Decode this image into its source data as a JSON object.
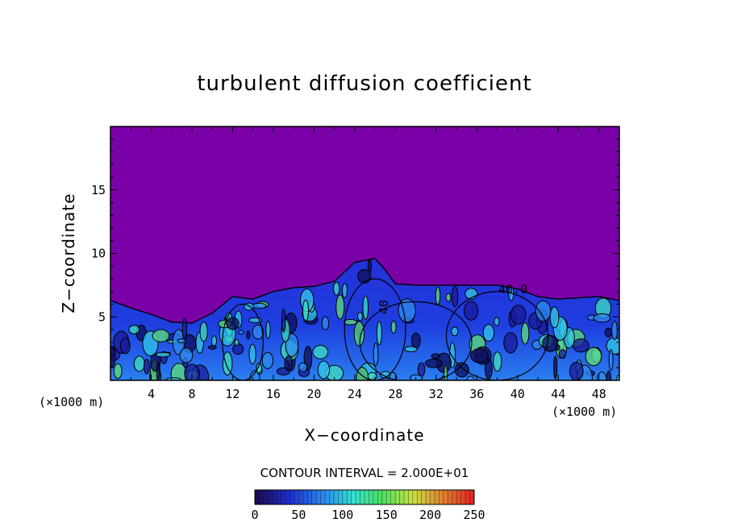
{
  "chart_data": {
    "type": "heatmap",
    "title": "turbulent diffusion coefficient",
    "xlabel": "X−coordinate",
    "ylabel": "Z−coordinate",
    "x_unit_left": "(×1000 m)",
    "x_unit_right": "(×1000 m)",
    "xlim": [
      0,
      50
    ],
    "ylim": [
      0,
      20
    ],
    "x_ticks": [
      4,
      8,
      12,
      16,
      20,
      24,
      28,
      32,
      36,
      40,
      44,
      48
    ],
    "y_ticks": [
      5,
      10,
      15
    ],
    "contour_interval_text": "CONTOUR INTERVAL = 2.000E+01",
    "contour_interval": 20,
    "contour_labels": [
      "40.0",
      "40"
    ],
    "colorbar": {
      "min": 0,
      "max": 250,
      "ticks": [
        0,
        50,
        100,
        150,
        200,
        250
      ],
      "colors": [
        "#1a0a4a",
        "#1f2fd0",
        "#2a8cf0",
        "#33e0d0",
        "#4ce060",
        "#c8e040",
        "#e08030",
        "#e02020"
      ]
    },
    "background_color": "#7a00a8",
    "boundary_layer_top_profile": [
      {
        "x": 0,
        "z": 6.3
      },
      {
        "x": 2,
        "z": 5.7
      },
      {
        "x": 4,
        "z": 5.2
      },
      {
        "x": 6,
        "z": 4.6
      },
      {
        "x": 8,
        "z": 4.5
      },
      {
        "x": 10,
        "z": 5.3
      },
      {
        "x": 12,
        "z": 6.6
      },
      {
        "x": 14,
        "z": 6.4
      },
      {
        "x": 16,
        "z": 7.0
      },
      {
        "x": 18,
        "z": 7.3
      },
      {
        "x": 20,
        "z": 7.4
      },
      {
        "x": 22,
        "z": 7.8
      },
      {
        "x": 24,
        "z": 9.3
      },
      {
        "x": 26,
        "z": 9.6
      },
      {
        "x": 27,
        "z": 8.7
      },
      {
        "x": 28,
        "z": 7.6
      },
      {
        "x": 30,
        "z": 7.5
      },
      {
        "x": 34,
        "z": 7.5
      },
      {
        "x": 38,
        "z": 7.5
      },
      {
        "x": 40,
        "z": 7.2
      },
      {
        "x": 42,
        "z": 6.6
      },
      {
        "x": 44,
        "z": 6.4
      },
      {
        "x": 46,
        "z": 6.5
      },
      {
        "x": 48,
        "z": 6.6
      },
      {
        "x": 50,
        "z": 6.3
      }
    ]
  }
}
